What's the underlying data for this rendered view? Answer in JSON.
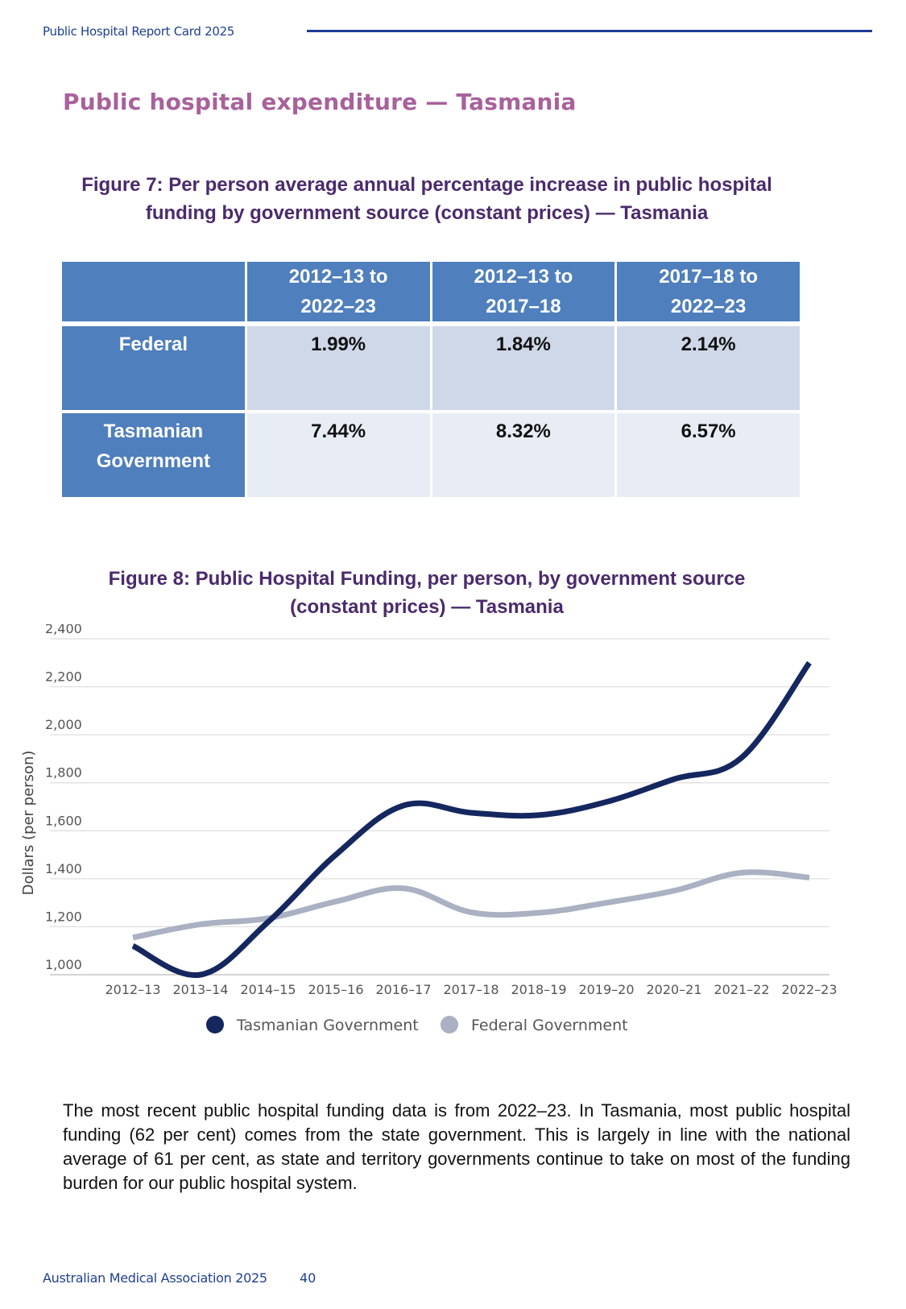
{
  "header": {
    "report_title": "Public Hospital Report Card 2025"
  },
  "section_title": "Public hospital expenditure — Tasmania",
  "figure7": {
    "title_line1": "Figure 7: Per person average annual percentage increase in public hospital",
    "title_line2": "funding by government source (constant prices) — Tasmania",
    "table": {
      "columns": [
        {
          "line1": "2012–13 to",
          "line2": "2022–23"
        },
        {
          "line1": "2012–13 to",
          "line2": "2017–18"
        },
        {
          "line1": "2017–18 to",
          "line2": "2022–23"
        }
      ],
      "rows": [
        {
          "label_line1": "Federal",
          "label_line2": "",
          "values": [
            "1.99%",
            "1.84%",
            "2.14%"
          ]
        },
        {
          "label_line1": "Tasmanian",
          "label_line2": "Government",
          "values": [
            "7.44%",
            "8.32%",
            "6.57%"
          ]
        }
      ]
    }
  },
  "figure8": {
    "title_line1": "Figure 8: Public Hospital Funding, per person, by government source",
    "title_line2": "(constant prices) — Tasmania"
  },
  "chart_data": {
    "type": "line",
    "title": "Figure 8: Public Hospital Funding, per person, by government source (constant prices) — Tasmania",
    "ylabel": "Dollars (per person)",
    "xlabel": "",
    "ylim": [
      1000,
      2400
    ],
    "yticks": [
      1000,
      1200,
      1400,
      1600,
      1800,
      2000,
      2200,
      2400
    ],
    "ytick_labels": [
      "1,000",
      "1,200",
      "1,400",
      "1,600",
      "1,800",
      "2,000",
      "2,200",
      "2,400"
    ],
    "categories": [
      "2012–13",
      "2013–14",
      "2014–15",
      "2015–16",
      "2016–17",
      "2017–18",
      "2018–19",
      "2019–20",
      "2020–21",
      "2021–22",
      "2022–23"
    ],
    "grid": true,
    "legend_position": "bottom",
    "series": [
      {
        "name": "Tasmanian Government",
        "color": "#14275e",
        "values": [
          1120,
          1000,
          1220,
          1500,
          1705,
          1675,
          1665,
          1720,
          1815,
          1905,
          2300
        ]
      },
      {
        "name": "Federal Government",
        "color": "#a9b1c2",
        "values": [
          1155,
          1210,
          1235,
          1305,
          1360,
          1260,
          1258,
          1300,
          1350,
          1425,
          1405
        ]
      }
    ]
  },
  "body_text": "The most recent public hospital funding data is from 2022–23. In Tasmania, most public hospital funding (62 per cent) comes from the state government. This is largely in line with the national average of 61 per cent, as state and territory governments continue to take on most of the funding burden for our public hospital system.",
  "footer": {
    "organisation": "Australian Medical Association 2025",
    "page_number": "40"
  }
}
